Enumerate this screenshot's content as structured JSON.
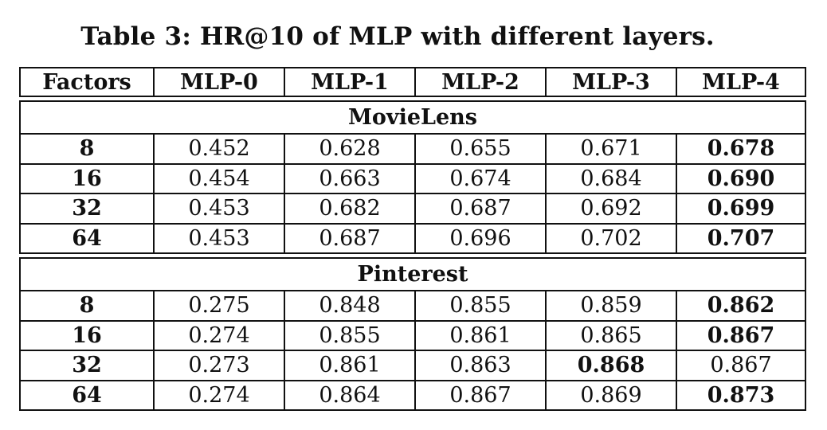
{
  "caption": "Table 3: HR@10 of MLP with different layers.",
  "columns": [
    "Factors",
    "MLP-0",
    "MLP-1",
    "MLP-2",
    "MLP-3",
    "MLP-4"
  ],
  "sections": [
    {
      "name": "MovieLens",
      "rows": [
        {
          "factors": "8",
          "values": [
            "0.452",
            "0.628",
            "0.655",
            "0.671",
            "0.678"
          ],
          "bold_index": 4
        },
        {
          "factors": "16",
          "values": [
            "0.454",
            "0.663",
            "0.674",
            "0.684",
            "0.690"
          ],
          "bold_index": 4
        },
        {
          "factors": "32",
          "values": [
            "0.453",
            "0.682",
            "0.687",
            "0.692",
            "0.699"
          ],
          "bold_index": 4
        },
        {
          "factors": "64",
          "values": [
            "0.453",
            "0.687",
            "0.696",
            "0.702",
            "0.707"
          ],
          "bold_index": 4
        }
      ]
    },
    {
      "name": "Pinterest",
      "rows": [
        {
          "factors": "8",
          "values": [
            "0.275",
            "0.848",
            "0.855",
            "0.859",
            "0.862"
          ],
          "bold_index": 4
        },
        {
          "factors": "16",
          "values": [
            "0.274",
            "0.855",
            "0.861",
            "0.865",
            "0.867"
          ],
          "bold_index": 4
        },
        {
          "factors": "32",
          "values": [
            "0.273",
            "0.861",
            "0.863",
            "0.868",
            "0.867"
          ],
          "bold_index": 3
        },
        {
          "factors": "64",
          "values": [
            "0.274",
            "0.864",
            "0.867",
            "0.869",
            "0.873"
          ],
          "bold_index": 4
        }
      ]
    }
  ]
}
